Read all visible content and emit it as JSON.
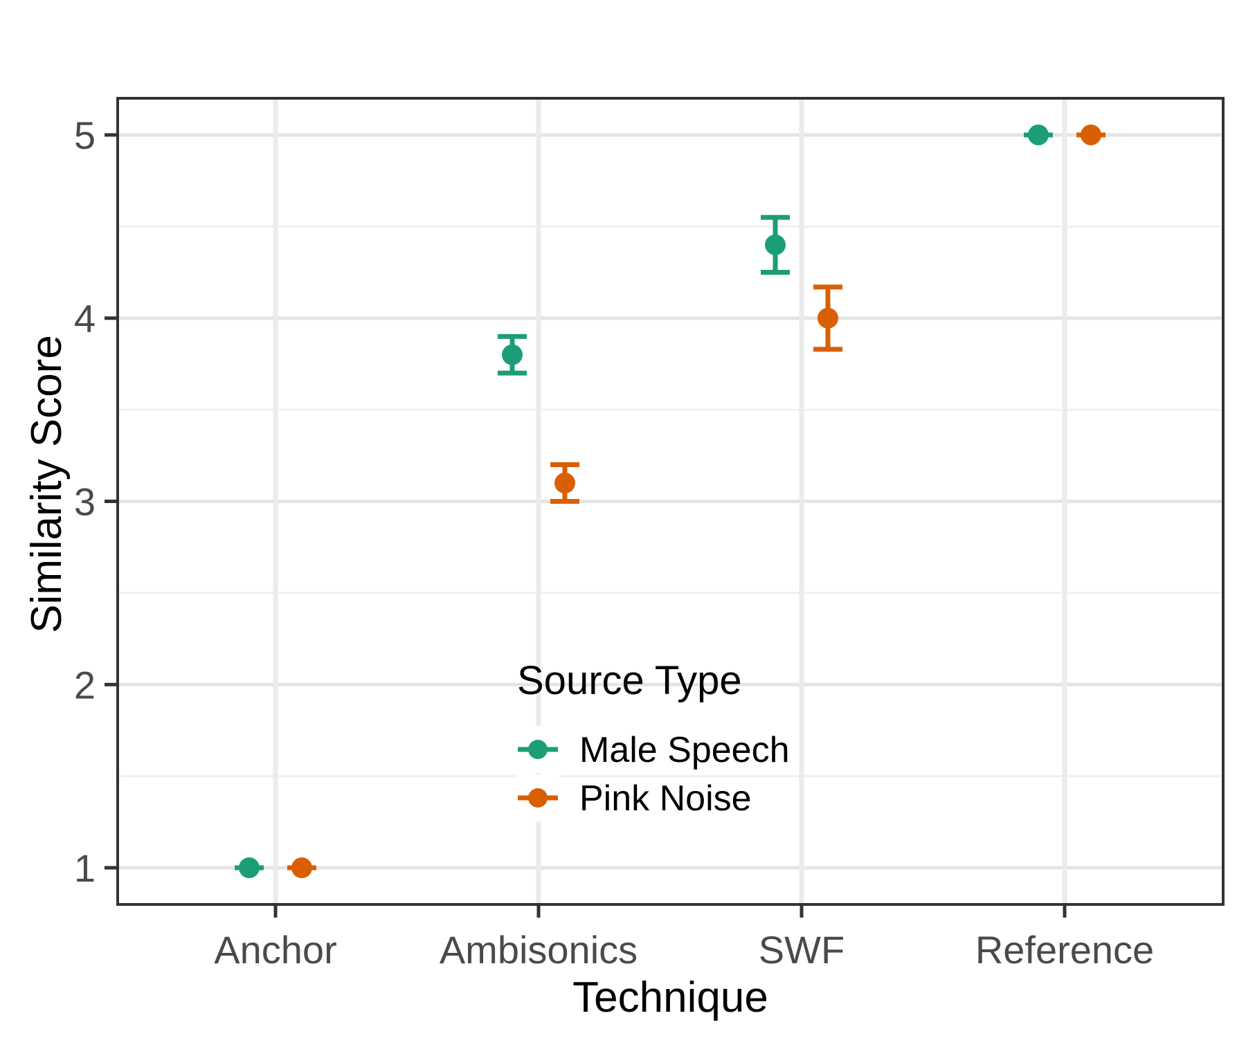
{
  "chart_data": {
    "type": "scatter",
    "subtype": "point-with-errorbars",
    "title": "",
    "xlabel": "Technique",
    "ylabel": "Similarity Score",
    "categories": [
      "Anchor",
      "Ambisonics",
      "SWF",
      "Reference"
    ],
    "y_ticks": [
      1,
      2,
      3,
      4,
      5
    ],
    "y_tick_labels": [
      "1",
      "2",
      "3",
      "4",
      "5"
    ],
    "y_minor_ticks": [
      1.5,
      2.5,
      3.5,
      4.5
    ],
    "ylim": [
      0.8,
      5.2
    ],
    "grid": true,
    "legend": {
      "title": "Source Type",
      "position": "inside-lower-center",
      "entries": [
        "Male Speech",
        "Pink Noise"
      ]
    },
    "series": [
      {
        "name": "Male Speech",
        "color": "#1b9e77",
        "values": [
          1.0,
          3.8,
          4.4,
          5.0
        ],
        "ymin": [
          1.0,
          3.7,
          4.25,
          5.0
        ],
        "ymax": [
          1.0,
          3.9,
          4.55,
          5.0
        ]
      },
      {
        "name": "Pink Noise",
        "color": "#d95f02",
        "values": [
          1.0,
          3.1,
          4.0,
          5.0
        ],
        "ymin": [
          1.0,
          3.0,
          3.83,
          5.0
        ],
        "ymax": [
          1.0,
          3.2,
          4.17,
          5.0
        ]
      }
    ],
    "colors": {
      "background": "#ffffff",
      "panel_background": "#ffffff",
      "grid_major_h": "#e4e4e4",
      "grid_minor_h": "#f0f0f0",
      "grid_major_v": "#ebebeb",
      "panel_border": "#333333",
      "tick": "#333333",
      "axis_text": "#4a4a4a",
      "axis_title": "#000000",
      "legend_text": "#000000",
      "legend_key_background": "#ffffff"
    }
  }
}
